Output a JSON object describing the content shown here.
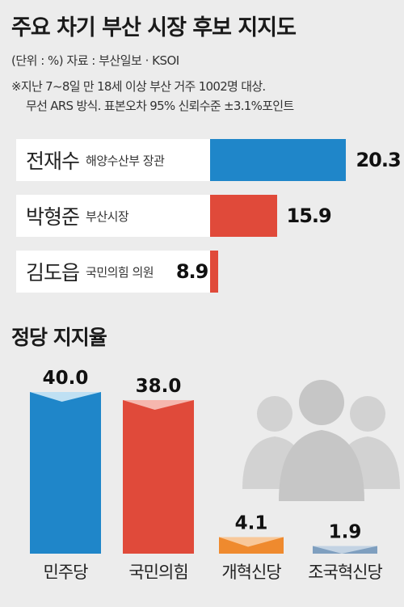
{
  "title": "주요 차기 부산 시장 후보 지지도",
  "meta": "(단위 : %)   자료 : 부산일보 · KSOI",
  "note_line1": "※지난 7~8일 만 18세 이상 부산 거주 1002명 대상.",
  "note_line2": "무선 ARS 방식. 표본오차 95% 신뢰수준 ±3.1%포인트",
  "party_title": "정당 지지율",
  "colors": {
    "blue": "#1f86c9",
    "red": "#e04a3a",
    "orange": "#ef8a2e",
    "steel": "#7f9fbf",
    "background": "#ececec"
  },
  "chart_data": [
    {
      "type": "bar",
      "orientation": "horizontal",
      "categories": [
        "전재수",
        "박형준",
        "김도읍"
      ],
      "roles": [
        "해양수산부 장관",
        "부산시장",
        "국민의힘 의원"
      ],
      "values": [
        20.3,
        15.9,
        8.9
      ],
      "value_labels": [
        "20.3",
        "15.9",
        "8.9"
      ],
      "colors": [
        "#1f86c9",
        "#e04a3a",
        "#e04a3a"
      ],
      "title": "주요 차기 부산 시장 후보 지지도"
    },
    {
      "type": "bar",
      "orientation": "vertical",
      "categories": [
        "민주당",
        "국민의힘",
        "개혁신당",
        "조국혁신당"
      ],
      "values": [
        40.0,
        38.0,
        4.1,
        1.9
      ],
      "value_labels": [
        "40.0",
        "38.0",
        "4.1",
        "1.9"
      ],
      "colors": [
        "#1f86c9",
        "#e04a3a",
        "#ef8a2e",
        "#7f9fbf"
      ],
      "title": "정당 지지율"
    }
  ]
}
